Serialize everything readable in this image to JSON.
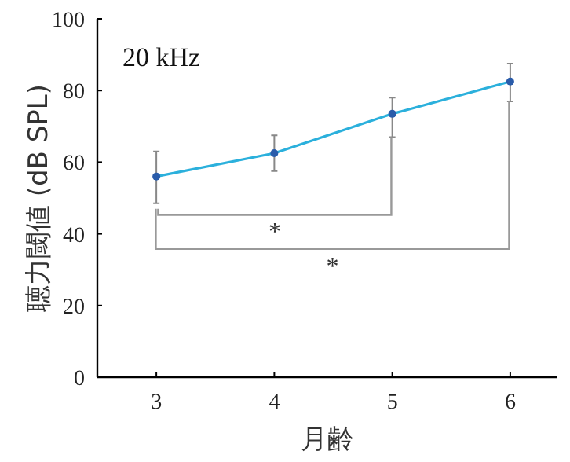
{
  "chart_data": {
    "type": "line",
    "title": "20 kHz",
    "xlabel": "月齢",
    "ylabel": "聴力閾値 (dB SPL)",
    "x": [
      3,
      4,
      5,
      6
    ],
    "series": [
      {
        "color": "#2bb0dc",
        "values": [
          56,
          62.5,
          73.5,
          82.5
        ],
        "errors": [
          [
            48.5,
            63
          ],
          [
            57.5,
            67.5
          ],
          [
            67,
            78
          ],
          [
            77,
            87.5
          ]
        ]
      }
    ],
    "xlim": [
      2.5,
      6.4
    ],
    "xticks": [
      3,
      4,
      5,
      6
    ],
    "ylim": [
      0,
      100
    ],
    "yticks": [
      0,
      20,
      40,
      60,
      80,
      100
    ],
    "marker": "circle",
    "line_style": "solid",
    "grid": false,
    "annotations": [
      "*",
      "*"
    ]
  }
}
